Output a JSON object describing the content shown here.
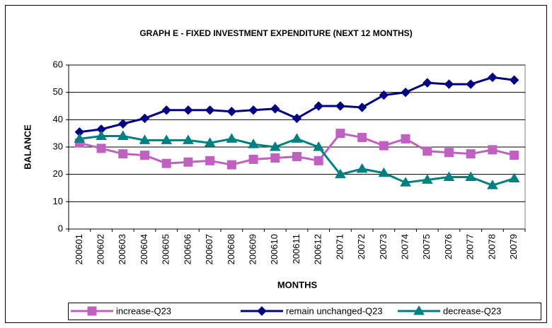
{
  "chart_data": {
    "type": "line",
    "title": "GRAPH E - FIXED INVESTMENT EXPENDITURE (NEXT 12 MONTHS)",
    "x_label": "MONTHS",
    "y_label": "BALANCE",
    "categories": [
      "200601",
      "200602",
      "200603",
      "200604",
      "200605",
      "200606",
      "200607",
      "200608",
      "200609",
      "200610",
      "200611",
      "200612",
      "20071",
      "20072",
      "20073",
      "20074",
      "20075",
      "20076",
      "20077",
      "20078",
      "20079"
    ],
    "series": [
      {
        "name": "increase-Q23",
        "color": "#c060c0",
        "marker": "square",
        "values": [
          31.5,
          29.5,
          27.5,
          27,
          24,
          24.5,
          25,
          23.5,
          25.5,
          26,
          26.5,
          25,
          35,
          33.5,
          30.5,
          33,
          28.5,
          28,
          27.5,
          29,
          27
        ]
      },
      {
        "name": "remain unchanged-Q23",
        "color": "#000080",
        "marker": "diamond",
        "values": [
          35.5,
          36.5,
          38.5,
          40.5,
          43.5,
          43.5,
          43.5,
          43,
          43.5,
          44,
          40.5,
          45,
          45,
          44.5,
          49,
          50,
          53.5,
          53,
          53,
          55.5,
          54.5
        ]
      },
      {
        "name": "decrease-Q23",
        "color": "#008080",
        "marker": "triangle",
        "values": [
          33,
          34,
          34,
          32.5,
          32.5,
          32.5,
          31.5,
          33,
          31,
          30,
          33,
          30,
          20,
          22,
          20.5,
          17,
          18,
          19,
          19,
          16,
          18.5
        ]
      }
    ],
    "ylim": [
      0,
      60
    ],
    "yticks": [
      0,
      10,
      20,
      30,
      40,
      50,
      60
    ],
    "grid": true
  }
}
